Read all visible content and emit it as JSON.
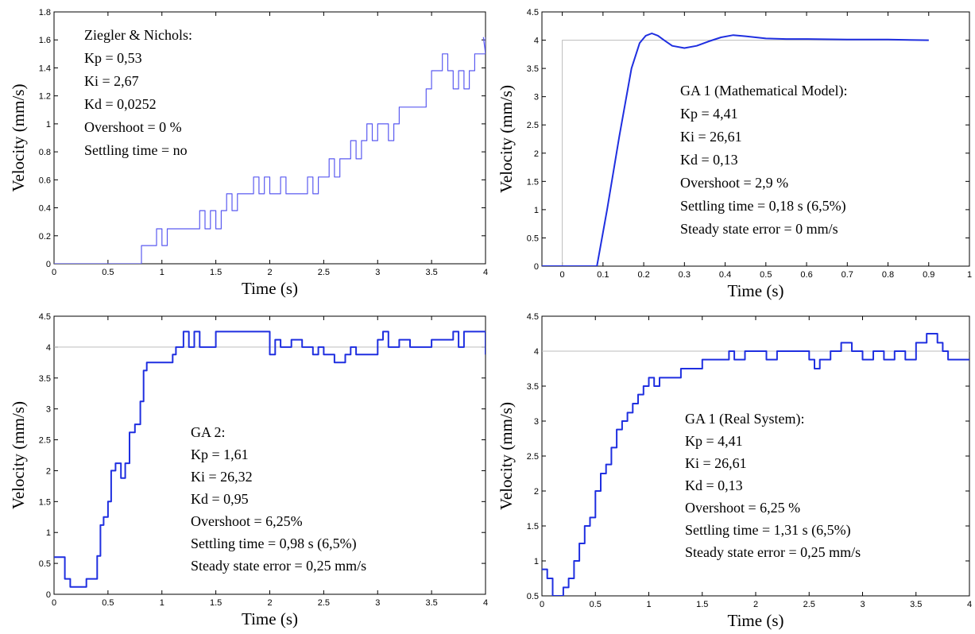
{
  "chart_data": [
    {
      "type": "line",
      "xlabel": "Time (s)",
      "ylabel": "Velocity (mm/s)",
      "xlim": [
        0,
        4
      ],
      "ylim": [
        0,
        1.8
      ],
      "xticks": [
        "0",
        "0.5",
        "1",
        "1.5",
        "2",
        "2.5",
        "3",
        "3.5",
        "4"
      ],
      "yticks": [
        "0",
        "0.2",
        "0.4",
        "0.6",
        "0.8",
        "1",
        "1.2",
        "1.4",
        "1.6",
        "1.8"
      ],
      "xtick_values": [
        0,
        0.5,
        1,
        1.5,
        2,
        2.5,
        3,
        3.5,
        4
      ],
      "ytick_values": [
        0,
        0.2,
        0.4,
        0.6,
        0.8,
        1,
        1.2,
        1.4,
        1.6,
        1.8
      ],
      "line_color": "#5a5af0",
      "line_width": 1.2,
      "annotation": [
        "Ziegler & Nichols:",
        "Kp = 0,53",
        "Ki = 2,67",
        "Kd = 0,0252",
        "Overshoot = 0 %",
        "Settling time = no"
      ],
      "series": [
        {
          "step": true,
          "x": [
            0,
            0.81,
            0.81,
            0.9,
            0.95,
            1.0,
            1.05,
            1.2,
            1.35,
            1.4,
            1.45,
            1.5,
            1.55,
            1.6,
            1.65,
            1.7,
            1.75,
            1.8,
            1.85,
            1.9,
            1.95,
            2.0,
            2.1,
            2.15,
            2.2,
            2.25,
            2.3,
            2.35,
            2.4,
            2.45,
            2.5,
            2.55,
            2.6,
            2.65,
            2.7,
            2.75,
            2.8,
            2.85,
            2.9,
            2.95,
            3.0,
            3.05,
            3.1,
            3.15,
            3.2,
            3.25,
            3.3,
            3.35,
            3.4,
            3.45,
            3.5,
            3.55,
            3.6,
            3.65,
            3.7,
            3.75,
            3.8,
            3.85,
            3.9,
            3.95,
            4.0
          ],
          "y": [
            0,
            0,
            0.13,
            0.13,
            0.25,
            0.13,
            0.25,
            0.25,
            0.38,
            0.25,
            0.38,
            0.25,
            0.38,
            0.5,
            0.38,
            0.5,
            0.5,
            0.5,
            0.62,
            0.5,
            0.62,
            0.5,
            0.62,
            0.5,
            0.5,
            0.5,
            0.5,
            0.62,
            0.5,
            0.62,
            0.62,
            0.75,
            0.62,
            0.75,
            0.75,
            0.88,
            0.75,
            0.88,
            1.0,
            0.88,
            1.0,
            1.0,
            0.88,
            1.0,
            1.12,
            1.12,
            1.12,
            1.12,
            1.12,
            1.25,
            1.38,
            1.38,
            1.5,
            1.38,
            1.25,
            1.38,
            1.25,
            1.38,
            1.5,
            1.5,
            1.62
          ]
        },
        {
          "step": false,
          "x": [
            3.98,
            4.0
          ],
          "y": [
            1.62,
            1.5
          ]
        }
      ]
    },
    {
      "type": "line",
      "xlabel": "Time (s)",
      "ylabel": "Velocity (mm/s)",
      "xlim": [
        -0.05,
        1
      ],
      "ylim": [
        0,
        4.5
      ],
      "xticks": [
        "0",
        "0.1",
        "0.2",
        "0.3",
        "0.4",
        "0.5",
        "0.6",
        "0.7",
        "0.8",
        "0.9",
        "1"
      ],
      "yticks": [
        "0",
        "0.5",
        "1",
        "1.5",
        "2",
        "2.5",
        "3",
        "3.5",
        "4",
        "4.5"
      ],
      "xtick_values": [
        0,
        0.1,
        0.2,
        0.3,
        0.4,
        0.5,
        0.6,
        0.7,
        0.8,
        0.9,
        1
      ],
      "ytick_values": [
        0,
        0.5,
        1,
        1.5,
        2,
        2.5,
        3,
        3.5,
        4,
        4.5
      ],
      "line_color": "#1f2fe0",
      "line_width": 2,
      "reference": {
        "x": [
          -0.05,
          0,
          0,
          0.9
        ],
        "y": [
          0,
          0,
          4,
          4
        ]
      },
      "annotation": [
        "GA 1 (Mathematical Model):",
        "Kp = 4,41",
        "Ki = 26,61",
        "Kd = 0,13",
        "Overshoot = 2,9 %",
        "Settling time = 0,18 s (6,5%)",
        "Steady state error = 0 mm/s"
      ],
      "series": [
        {
          "step": false,
          "x": [
            -0.05,
            0.085,
            0.11,
            0.14,
            0.17,
            0.19,
            0.205,
            0.22,
            0.235,
            0.25,
            0.27,
            0.3,
            0.33,
            0.36,
            0.39,
            0.42,
            0.45,
            0.5,
            0.55,
            0.6,
            0.7,
            0.8,
            0.9
          ],
          "y": [
            0,
            0,
            1.0,
            2.3,
            3.5,
            3.95,
            4.08,
            4.12,
            4.08,
            4.0,
            3.9,
            3.86,
            3.9,
            3.98,
            4.05,
            4.09,
            4.07,
            4.03,
            4.02,
            4.02,
            4.01,
            4.01,
            4.0
          ]
        }
      ]
    },
    {
      "type": "line",
      "xlabel": "Time (s)",
      "ylabel": "Velocity (mm/s)",
      "xlim": [
        0,
        4
      ],
      "ylim": [
        0,
        4.5
      ],
      "xticks": [
        "0",
        "0.5",
        "1",
        "1.5",
        "2",
        "2.5",
        "3",
        "3.5",
        "4"
      ],
      "yticks": [
        "0",
        "0.5",
        "1",
        "1.5",
        "2",
        "2.5",
        "3",
        "3.5",
        "4",
        "4.5"
      ],
      "xtick_values": [
        0,
        0.5,
        1,
        1.5,
        2,
        2.5,
        3,
        3.5,
        4
      ],
      "ytick_values": [
        0,
        0.5,
        1,
        1.5,
        2,
        2.5,
        3,
        3.5,
        4,
        4.5
      ],
      "line_color": "#1f2fe0",
      "line_width": 2,
      "reference": {
        "x": [
          0,
          4
        ],
        "y": [
          4,
          4
        ]
      },
      "annotation": [
        "GA 2:",
        "Kp = 1,61",
        "Ki = 26,32",
        "Kd = 0,95",
        "Overshoot = 6,25%",
        "Settling time = 0,98 s (6,5%)",
        "Steady state error = 0,25 mm/s"
      ],
      "series": [
        {
          "step": true,
          "x": [
            0,
            0.1,
            0.15,
            0.3,
            0.4,
            0.43,
            0.46,
            0.5,
            0.53,
            0.57,
            0.62,
            0.66,
            0.7,
            0.75,
            0.8,
            0.83,
            0.86,
            0.9,
            1.1,
            1.13,
            1.2,
            1.25,
            1.3,
            1.35,
            1.5,
            1.9,
            2.0,
            2.05,
            2.1,
            2.2,
            2.3,
            2.4,
            2.45,
            2.5,
            2.6,
            2.7,
            2.75,
            2.8,
            3.0,
            3.05,
            3.1,
            3.2,
            3.3,
            3.5,
            3.7,
            3.75,
            3.8,
            3.95,
            4.0
          ],
          "y": [
            0.6,
            0.25,
            0.12,
            0.25,
            0.62,
            1.12,
            1.25,
            1.5,
            2.0,
            2.12,
            1.88,
            2.12,
            2.62,
            2.75,
            3.12,
            3.62,
            3.75,
            3.75,
            3.88,
            4.0,
            4.25,
            4.0,
            4.25,
            4.0,
            4.25,
            4.25,
            3.88,
            4.12,
            4.0,
            4.12,
            4.0,
            3.88,
            4.0,
            3.88,
            3.75,
            3.88,
            4.0,
            3.88,
            4.12,
            4.25,
            4.0,
            4.12,
            4.0,
            4.12,
            4.25,
            4.0,
            4.25,
            4.25,
            3.88
          ]
        }
      ]
    },
    {
      "type": "line",
      "xlabel": "Time (s)",
      "ylabel": "Velocity (mm/s)",
      "xlim": [
        0,
        4
      ],
      "ylim": [
        0.5,
        4.5
      ],
      "xticks": [
        "0",
        "0.5",
        "1",
        "1.5",
        "2",
        "2.5",
        "3",
        "3.5",
        "4"
      ],
      "yticks": [
        "0.5",
        "1",
        "1.5",
        "2",
        "2.5",
        "3",
        "3.5",
        "4",
        "4.5"
      ],
      "xtick_values": [
        0,
        0.5,
        1,
        1.5,
        2,
        2.5,
        3,
        3.5,
        4
      ],
      "ytick_values": [
        0.5,
        1,
        1.5,
        2,
        2.5,
        3,
        3.5,
        4,
        4.5
      ],
      "line_color": "#1f2fe0",
      "line_width": 2,
      "reference": {
        "x": [
          0,
          4
        ],
        "y": [
          4,
          4
        ]
      },
      "annotation": [
        "GA 1 (Real System):",
        "Kp = 4,41",
        "Ki = 26,61",
        "Kd = 0,13",
        "Overshoot = 6,25 %",
        "Settling time = 1,31 s (6,5%)",
        "Steady state error = 0,25 mm/s"
      ],
      "series": [
        {
          "step": true,
          "x": [
            0,
            0.05,
            0.1,
            0.2,
            0.25,
            0.3,
            0.35,
            0.4,
            0.45,
            0.5,
            0.55,
            0.6,
            0.65,
            0.7,
            0.75,
            0.8,
            0.85,
            0.9,
            0.95,
            1.0,
            1.05,
            1.1,
            1.3,
            1.5,
            1.7,
            1.75,
            1.8,
            1.9,
            2.0,
            2.1,
            2.2,
            2.3,
            2.4,
            2.5,
            2.55,
            2.6,
            2.7,
            2.8,
            2.9,
            3.0,
            3.1,
            3.2,
            3.3,
            3.4,
            3.5,
            3.6,
            3.7,
            3.75,
            3.8,
            3.9,
            4.0
          ],
          "y": [
            0.88,
            0.75,
            0.5,
            0.62,
            0.75,
            1.0,
            1.25,
            1.5,
            1.62,
            2.0,
            2.25,
            2.38,
            2.62,
            2.88,
            3.0,
            3.12,
            3.25,
            3.38,
            3.5,
            3.62,
            3.5,
            3.62,
            3.75,
            3.88,
            3.88,
            4.0,
            3.88,
            4.0,
            4.0,
            3.88,
            4.0,
            4.0,
            4.0,
            3.88,
            3.75,
            3.88,
            4.0,
            4.12,
            4.0,
            3.88,
            4.0,
            3.88,
            4.0,
            3.88,
            4.12,
            4.25,
            4.12,
            4.0,
            3.88,
            3.88,
            3.88
          ]
        }
      ]
    }
  ]
}
